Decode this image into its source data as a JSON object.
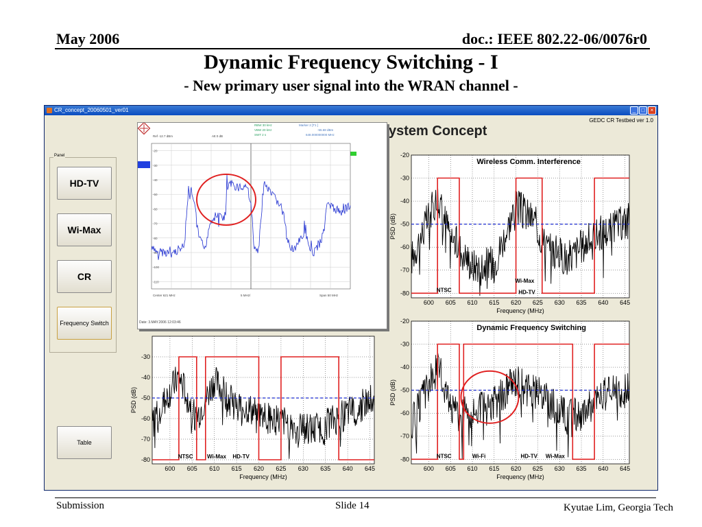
{
  "slide": {
    "date": "May 2006",
    "doc": "doc.: IEEE 802.22-06/0076r0",
    "title": "Dynamic Frequency Switching - I",
    "subtitle": "- New primary user signal into the WRAN channel -",
    "footer_left": "Submission",
    "footer_center": "Slide 14",
    "footer_right": "Kyutae Lim, Georgia Tech"
  },
  "window": {
    "title": "CR_concept_20060501_ver01",
    "version": "GEDC CR Testbed ver 1.0",
    "heading": "ystem Concept",
    "panel_label": "Panel",
    "buttons": [
      "HD-TV",
      "Wi-Max",
      "CR",
      "Frequency Switch",
      "Table"
    ]
  },
  "analyzer": {
    "rbw": "RBW 30 kHz",
    "vbw": "VBW 20 kHz",
    "swt": "SWT 2 s",
    "marker": "Marker 2 [T1 ]",
    "marker_level": "-55.68 dBm",
    "marker_freq": "648.000000000 MHz",
    "ref": "Ref -12.7 dBm",
    "att": "Att  0 dB",
    "center": "Center 621 MHz",
    "div": "5 MHz/",
    "span": "Span 50 MHz",
    "date": "Date: 3.MAY.2006  12:03:46"
  },
  "chart_data": [
    {
      "type": "line",
      "title": "Wireless Comm. Interference",
      "xlabel": "Frequency (MHz)",
      "ylabel": "PSD (dB)",
      "xlim": [
        596,
        646
      ],
      "ylim": [
        -82,
        -20
      ],
      "xticks": [
        600,
        605,
        610,
        615,
        620,
        625,
        630,
        635,
        640,
        645
      ],
      "yticks": [
        -20,
        -30,
        -40,
        -50,
        -60,
        -70,
        -80
      ],
      "threshold": -50,
      "mask": [
        [
          596,
          -80
        ],
        [
          602,
          -80
        ],
        [
          602,
          -30
        ],
        [
          607,
          -30
        ],
        [
          607,
          -80
        ],
        [
          620,
          -80
        ],
        [
          620,
          -30
        ],
        [
          626,
          -30
        ],
        [
          626,
          -80
        ],
        [
          638,
          -80
        ],
        [
          638,
          -30
        ],
        [
          646,
          -30
        ]
      ],
      "noise_levels": [
        [
          596,
          -65
        ],
        [
          602,
          -38
        ],
        [
          605,
          -55
        ],
        [
          610,
          -68
        ],
        [
          615,
          -67
        ],
        [
          620,
          -42
        ],
        [
          624,
          -48
        ],
        [
          627,
          -60
        ],
        [
          632,
          -65
        ],
        [
          638,
          -55
        ],
        [
          642,
          -52
        ],
        [
          646,
          -48
        ]
      ],
      "labels": [
        {
          "text": "NTSC",
          "x": 603.5,
          "y": -80
        },
        {
          "text": "Wi-Max",
          "x": 622,
          "y": -76
        },
        {
          "text": "HD-TV",
          "x": 622.5,
          "y": -81
        }
      ]
    },
    {
      "type": "line",
      "title": "Dynamic Frequency Switching",
      "xlabel": "Frequency (MHz)",
      "ylabel": "PSD (dB)",
      "xlim": [
        596,
        646
      ],
      "ylim": [
        -82,
        -20
      ],
      "xticks": [
        600,
        605,
        610,
        615,
        620,
        625,
        630,
        635,
        640,
        645
      ],
      "yticks": [
        -20,
        -30,
        -40,
        -50,
        -60,
        -70,
        -80
      ],
      "threshold": -50,
      "mask": [
        [
          596,
          -80
        ],
        [
          602,
          -80
        ],
        [
          602,
          -30
        ],
        [
          607,
          -30
        ],
        [
          607,
          -80
        ],
        [
          608,
          -80
        ],
        [
          608,
          -30
        ],
        [
          633,
          -30
        ],
        [
          633,
          -80
        ],
        [
          638,
          -80
        ],
        [
          638,
          -30
        ],
        [
          646,
          -30
        ]
      ],
      "noise_levels": [
        [
          596,
          -65
        ],
        [
          602,
          -40
        ],
        [
          606,
          -60
        ],
        [
          610,
          -60
        ],
        [
          615,
          -56
        ],
        [
          620,
          -45
        ],
        [
          625,
          -50
        ],
        [
          630,
          -60
        ],
        [
          635,
          -60
        ],
        [
          640,
          -52
        ],
        [
          646,
          -50
        ]
      ],
      "labels": [
        {
          "text": "NTSC",
          "x": 603.5,
          "y": -80
        },
        {
          "text": "Wi-Fi",
          "x": 611.5,
          "y": -80
        },
        {
          "text": "HD-TV",
          "x": 623,
          "y": -80
        },
        {
          "text": "Wi-Max",
          "x": 629,
          "y": -80
        }
      ]
    },
    {
      "type": "line",
      "title": "",
      "xlabel": "Frequency (MHz)",
      "ylabel": "PSD (dB)",
      "xlim": [
        596,
        646
      ],
      "ylim": [
        -82,
        -20
      ],
      "xticks": [
        600,
        605,
        610,
        615,
        620,
        625,
        630,
        635,
        640,
        645
      ],
      "yticks": [
        -30,
        -40,
        -50,
        -60,
        -70,
        -80
      ],
      "threshold": -50,
      "mask": [
        [
          596,
          -80
        ],
        [
          602,
          -80
        ],
        [
          602,
          -30
        ],
        [
          606,
          -30
        ],
        [
          606,
          -80
        ],
        [
          608,
          -80
        ],
        [
          608,
          -30
        ],
        [
          620,
          -30
        ],
        [
          620,
          -80
        ],
        [
          625,
          -80
        ],
        [
          625,
          -30
        ],
        [
          638,
          -30
        ],
        [
          638,
          -80
        ],
        [
          646,
          -80
        ]
      ],
      "noise_levels": [
        [
          596,
          -62
        ],
        [
          602,
          -40
        ],
        [
          606,
          -60
        ],
        [
          610,
          -42
        ],
        [
          614,
          -52
        ],
        [
          618,
          -56
        ],
        [
          622,
          -60
        ],
        [
          626,
          -62
        ],
        [
          632,
          -66
        ],
        [
          638,
          -60
        ],
        [
          642,
          -55
        ],
        [
          646,
          -50
        ]
      ],
      "labels": [
        {
          "text": "NTSC",
          "x": 603.5,
          "y": -80
        },
        {
          "text": "Wi-Max",
          "x": 610.5,
          "y": -80
        },
        {
          "text": "HD-TV",
          "x": 616,
          "y": -80
        }
      ]
    }
  ]
}
